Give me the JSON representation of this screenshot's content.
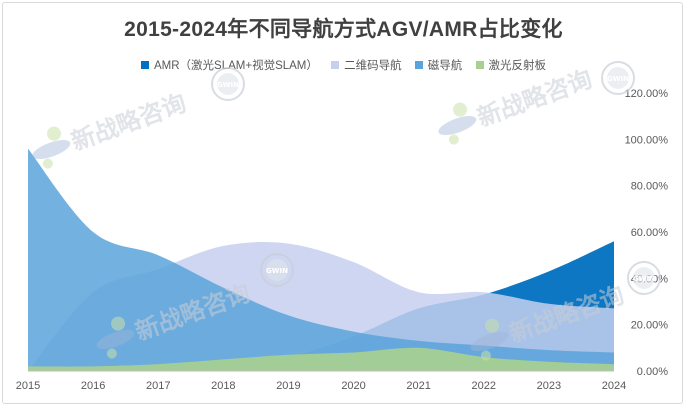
{
  "chart_data": {
    "type": "area",
    "title": "2015-2024年不同导航方式AGV/AMR占比变化",
    "xlabel": "",
    "ylabel": "",
    "x": [
      "2015",
      "2016",
      "2017",
      "2018",
      "2019",
      "2020",
      "2021",
      "2022",
      "2023",
      "2024"
    ],
    "ylim": [
      0,
      1.2
    ],
    "yticks": [
      "0.00%",
      "20.00%",
      "40.00%",
      "60.00%",
      "80.00%",
      "100.00%",
      "120.00%"
    ],
    "grid": false,
    "legend_position": "top",
    "series": [
      {
        "name": "AMR（激光SLAM+视觉SLAM）",
        "color": "#0070c0",
        "values": [
          0.0,
          0.0,
          0.01,
          0.02,
          0.06,
          0.15,
          0.27,
          0.33,
          0.43,
          0.56
        ]
      },
      {
        "name": "二维码导航",
        "color": "#c5cfee",
        "values": [
          0.0,
          0.34,
          0.44,
          0.54,
          0.55,
          0.47,
          0.34,
          0.34,
          0.29,
          0.27
        ]
      },
      {
        "name": "磁导航",
        "color": "#5ba3db",
        "values": [
          0.96,
          0.6,
          0.5,
          0.36,
          0.24,
          0.17,
          0.13,
          0.11,
          0.09,
          0.08
        ]
      },
      {
        "name": "激光反射板",
        "color": "#a9d08e",
        "values": [
          0.02,
          0.02,
          0.03,
          0.05,
          0.07,
          0.08,
          0.1,
          0.06,
          0.04,
          0.03
        ]
      }
    ]
  },
  "watermark": {
    "text": "新战略咨询",
    "badge": "GWIN"
  }
}
